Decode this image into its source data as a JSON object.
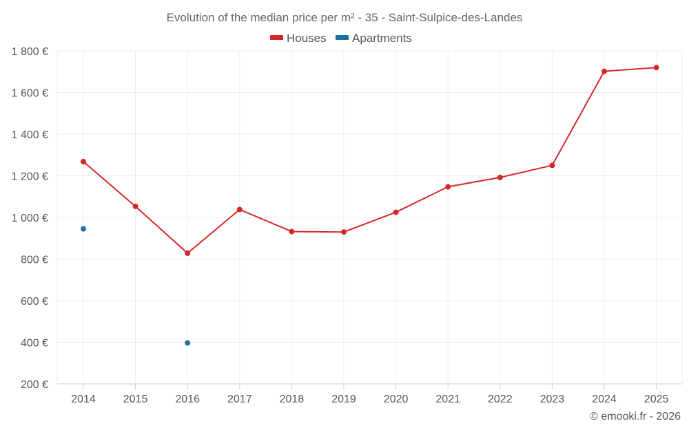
{
  "chart_data": {
    "type": "line",
    "title": "Evolution of the median price per m² - 35 - Saint-Sulpice-des-Landes",
    "categories": [
      "2014",
      "2015",
      "2016",
      "2017",
      "2018",
      "2019",
      "2020",
      "2021",
      "2022",
      "2023",
      "2024",
      "2025"
    ],
    "series": [
      {
        "name": "Houses",
        "color": "#d62728",
        "values": [
          1268,
          1053,
          828,
          1038,
          932,
          930,
          1025,
          1147,
          1192,
          1250,
          1702,
          1720
        ]
      },
      {
        "name": "Apartments",
        "color": "#1f6fa3",
        "values": [
          945,
          null,
          397,
          null,
          null,
          null,
          null,
          null,
          null,
          null,
          null,
          null
        ]
      }
    ],
    "y_ticks": [
      200,
      400,
      600,
      800,
      1000,
      1200,
      1400,
      1600,
      1800
    ],
    "y_tick_labels": [
      "200 €",
      "400 €",
      "600 €",
      "800 €",
      "1 000 €",
      "1 200 €",
      "1 400 €",
      "1 600 €",
      "1 800 €"
    ],
    "ylim": [
      200,
      1800
    ],
    "xlabel": "",
    "ylabel": "",
    "legend_position": "top-center"
  },
  "credit": "© emooki.fr - 2026"
}
